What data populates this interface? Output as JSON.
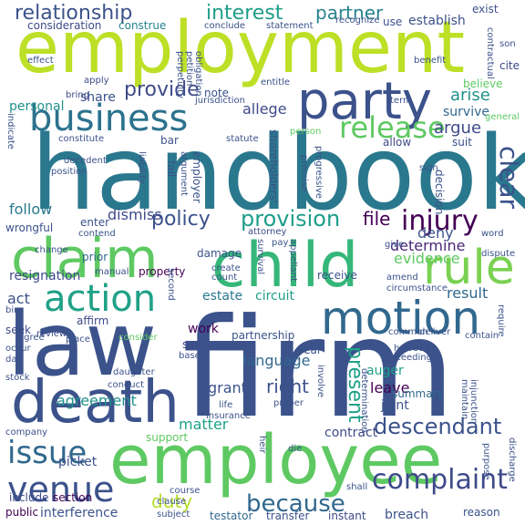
{
  "background": "#ffffff",
  "words": [
    {
      "id": "firm",
      "text": "firm",
      "color": "#3b528b"
    },
    {
      "id": "handbook",
      "text": "handbook",
      "color": "#2a788e"
    },
    {
      "id": "employment",
      "text": "employment",
      "color": "#bddf26"
    },
    {
      "id": "employee",
      "text": "employee",
      "color": "#5ec962"
    },
    {
      "id": "law",
      "text": "law",
      "color": "#3b528b"
    },
    {
      "id": "death",
      "text": "death",
      "color": "#3b528b"
    },
    {
      "id": "party",
      "text": "party",
      "color": "#3b528b"
    },
    {
      "id": "business",
      "text": "business",
      "color": "#2c728e"
    },
    {
      "id": "claim",
      "text": "claim",
      "color": "#5ec962"
    },
    {
      "id": "child",
      "text": "child",
      "color": "#35b779"
    },
    {
      "id": "motion",
      "text": "motion",
      "color": "#31688e"
    },
    {
      "id": "action",
      "text": "action",
      "color": "#1fa187"
    },
    {
      "id": "rule",
      "text": "rule",
      "color": "#7ad151"
    },
    {
      "id": "venue",
      "text": "venue",
      "color": "#3b528b"
    },
    {
      "id": "issue",
      "text": "issue",
      "color": "#31688e"
    },
    {
      "id": "release",
      "text": "release",
      "color": "#5ec962"
    },
    {
      "id": "complaint",
      "text": "complaint",
      "color": "#3e4a89"
    },
    {
      "id": "because",
      "text": "because",
      "color": "#31688e"
    },
    {
      "id": "descendant",
      "text": "descendant",
      "color": "#3b528b"
    },
    {
      "id": "injury",
      "text": "injury",
      "color": "#440154"
    },
    {
      "id": "provision",
      "text": "provision",
      "color": "#1f9e89"
    },
    {
      "id": "policy",
      "text": "policy",
      "color": "#3b528b"
    },
    {
      "id": "relationship",
      "text": "relationship",
      "color": "#3b528b"
    },
    {
      "id": "interest",
      "text": "interest",
      "color": "#1f9e89"
    },
    {
      "id": "partner",
      "text": "partner",
      "color": "#26828e"
    },
    {
      "id": "provide",
      "text": "provide",
      "color": "#3e4a89"
    },
    {
      "id": "present",
      "text": "present",
      "color": "#1fa187"
    },
    {
      "id": "agreement",
      "text": "agreement",
      "color": "#21918c"
    },
    {
      "id": "right",
      "text": "right",
      "color": "#3b528b"
    },
    {
      "id": "file",
      "text": "file",
      "color": "#440154"
    },
    {
      "id": "arise",
      "text": "arise",
      "color": "#21918c"
    },
    {
      "id": "argue",
      "text": "argue",
      "color": "#3e4a89"
    },
    {
      "id": "duty",
      "text": "duty",
      "color": "#b5de2b"
    },
    {
      "id": "resignation",
      "text": "resignation",
      "color": "#3e4a89"
    },
    {
      "id": "follow",
      "text": "follow",
      "color": "#2a788e"
    },
    {
      "id": "dismiss",
      "text": "dismiss",
      "color": "#3e4a89"
    },
    {
      "id": "deny",
      "text": "deny",
      "color": "#3b528b"
    },
    {
      "id": "determine",
      "text": "determine",
      "color": "#482878"
    },
    {
      "id": "evidence",
      "text": "evidence",
      "color": "#5ec962"
    },
    {
      "id": "allege",
      "text": "allege",
      "color": "#3e4a89"
    },
    {
      "id": "language",
      "text": "language",
      "color": "#31688e"
    },
    {
      "id": "leave",
      "text": "leave",
      "color": "#440154"
    },
    {
      "id": "contract",
      "text": "contract",
      "color": "#3e4a89"
    },
    {
      "id": "matter",
      "text": "matter",
      "color": "#1fa187"
    },
    {
      "id": "grant",
      "text": "grant",
      "color": "#3b528b"
    },
    {
      "id": "work",
      "text": "work",
      "color": "#440154"
    },
    {
      "id": "result",
      "text": "result",
      "color": "#31688e"
    },
    {
      "id": "circuit",
      "text": "circuit",
      "color": "#1f9e89"
    },
    {
      "id": "estate",
      "text": "estate",
      "color": "#2a788e"
    },
    {
      "id": "act",
      "text": "act",
      "color": "#3b528b"
    },
    {
      "id": "picket",
      "text": "picket",
      "color": "#3b528b"
    },
    {
      "id": "interference",
      "text": "interference",
      "color": "#3b528b"
    },
    {
      "id": "testator",
      "text": "testator",
      "color": "#31688e"
    },
    {
      "id": "transfer",
      "text": "transfer",
      "color": "#3b528b"
    },
    {
      "id": "instant",
      "text": "instant",
      "color": "#3e4a89"
    },
    {
      "id": "breach",
      "text": "breach",
      "color": "#3b528b"
    },
    {
      "id": "establish",
      "text": "establish",
      "color": "#3b528b"
    },
    {
      "id": "consideration",
      "text": "consideration",
      "color": "#3e4a89"
    },
    {
      "id": "construe",
      "text": "construe",
      "color": "#26828e"
    },
    {
      "id": "exist",
      "text": "exist",
      "color": "#3b528b"
    },
    {
      "id": "personal",
      "text": "personal",
      "color": "#21918c"
    },
    {
      "id": "share",
      "text": "share",
      "color": "#3b528b"
    },
    {
      "id": "survive",
      "text": "survive",
      "color": "#31688e"
    },
    {
      "id": "believe",
      "text": "believe",
      "color": "#5ec962"
    },
    {
      "id": "suit",
      "text": "suit",
      "color": "#3b528b"
    },
    {
      "id": "joint",
      "text": "joint",
      "color": "#3b528b"
    },
    {
      "id": "summary",
      "text": "summary",
      "color": "#31688e"
    },
    {
      "id": "auger",
      "text": "auger",
      "color": "#1f9e89"
    },
    {
      "id": "prior",
      "text": "prior",
      "color": "#31688e"
    },
    {
      "id": "property",
      "text": "property",
      "color": "#440154"
    },
    {
      "id": "partnership",
      "text": "partnership",
      "color": "#3b528b"
    },
    {
      "id": "include",
      "text": "include",
      "color": "#3e4a89"
    },
    {
      "id": "section",
      "text": "section",
      "color": "#440154"
    },
    {
      "id": "public",
      "text": "public",
      "color": "#440154"
    },
    {
      "id": "reason",
      "text": "reason",
      "color": "#3b528b"
    },
    {
      "id": "support",
      "text": "support",
      "color": "#5ec962"
    },
    {
      "id": "affirm",
      "text": "affirm",
      "color": "#3e4a89"
    },
    {
      "id": "say",
      "text": "say",
      "color": "#3e4a89"
    },
    {
      "id": "year",
      "text": "year",
      "color": "#3b528b"
    },
    {
      "id": "damage",
      "text": "damage",
      "color": "#3b528b"
    },
    {
      "id": "seek",
      "text": "seek",
      "color": "#3e4a89"
    },
    {
      "id": "review",
      "text": "review",
      "color": "#3e4a89"
    },
    {
      "id": "consider",
      "text": "consider",
      "color": "#5ec962"
    },
    {
      "id": "note",
      "text": "note",
      "color": "#3b528b"
    },
    {
      "id": "bar",
      "text": "bar",
      "color": "#3b528b"
    },
    {
      "id": "statute",
      "text": "statute",
      "color": "#3b528b"
    },
    {
      "id": "allow",
      "text": "allow",
      "color": "#3e4a89"
    },
    {
      "id": "constitute",
      "text": "constitute",
      "color": "#3b528b"
    },
    {
      "id": "decedent",
      "text": "decedent",
      "color": "#3b528b"
    },
    {
      "id": "position",
      "text": "position",
      "color": "#3b528b"
    },
    {
      "id": "apply",
      "text": "apply",
      "color": "#3e4a89"
    },
    {
      "id": "bring",
      "text": "bring",
      "color": "#3e4a89"
    },
    {
      "id": "effect",
      "text": "effect",
      "color": "#3b528b"
    },
    {
      "id": "conclude",
      "text": "conclude",
      "color": "#3b528b"
    },
    {
      "id": "statement",
      "text": "statement",
      "color": "#3b528b"
    },
    {
      "id": "benefit",
      "text": "benefit",
      "color": "#3b528b"
    },
    {
      "id": "term",
      "text": "term",
      "color": "#3b528b"
    },
    {
      "id": "person",
      "text": "person",
      "color": "#5ec962"
    },
    {
      "id": "cite",
      "text": "cite",
      "color": "#3e4a89"
    },
    {
      "id": "general",
      "text": "general",
      "color": "#5ec962"
    },
    {
      "id": "entitle",
      "text": "entitle",
      "color": "#3b528b"
    },
    {
      "id": "jurisdiction",
      "text": "jurisdiction",
      "color": "#3b528b"
    },
    {
      "id": "recognize",
      "text": "recognize",
      "color": "#3b528b"
    },
    {
      "id": "use",
      "text": "use",
      "color": "#3b528b"
    },
    {
      "id": "wrongful",
      "text": "wrongful",
      "color": "#3b528b"
    },
    {
      "id": "enter",
      "text": "enter",
      "color": "#3b528b"
    },
    {
      "id": "contend",
      "text": "contend",
      "color": "#3b528b"
    },
    {
      "id": "attorney",
      "text": "attorney",
      "color": "#3e4a89"
    },
    {
      "id": "pay",
      "text": "pay",
      "color": "#3b528b"
    },
    {
      "id": "word",
      "text": "word",
      "color": "#3b528b"
    },
    {
      "id": "give",
      "text": "give",
      "color": "#3b528b"
    },
    {
      "id": "dispute",
      "text": "dispute",
      "color": "#3b528b"
    },
    {
      "id": "change",
      "text": "change",
      "color": "#3b528b"
    },
    {
      "id": "manual",
      "text": "manual",
      "color": "#3b528b"
    },
    {
      "id": "create",
      "text": "create",
      "color": "#3b528b"
    },
    {
      "id": "count",
      "text": "count",
      "color": "#3b528b"
    },
    {
      "id": "receive",
      "text": "receive",
      "color": "#3b528b"
    },
    {
      "id": "amend",
      "text": "amend",
      "color": "#3b528b"
    },
    {
      "id": "circumstance",
      "text": "circumstance",
      "color": "#3b528b"
    },
    {
      "id": "require",
      "text": "require",
      "color": "#3b528b"
    },
    {
      "id": "common",
      "text": "common",
      "color": "#3b528b"
    },
    {
      "id": "deliver",
      "text": "deliver",
      "color": "#3b528b"
    },
    {
      "id": "contain",
      "text": "contain",
      "color": "#3b528b"
    },
    {
      "id": "however",
      "text": "however",
      "color": "#3b528b"
    },
    {
      "id": "proceeding",
      "text": "proceeding",
      "color": "#3b528b"
    },
    {
      "id": "occur",
      "text": "occur",
      "color": "#3b528b"
    },
    {
      "id": "day",
      "text": "day",
      "color": "#3b528b"
    },
    {
      "id": "agree",
      "text": "agree",
      "color": "#3b528b"
    },
    {
      "id": "place",
      "text": "place",
      "color": "#3b528b"
    },
    {
      "id": "base",
      "text": "base",
      "color": "#3b528b"
    },
    {
      "id": "stock",
      "text": "stock",
      "color": "#3b528b"
    },
    {
      "id": "daughter",
      "text": "daughter",
      "color": "#3b528b"
    },
    {
      "id": "conduct",
      "text": "conduct",
      "color": "#3b528b"
    },
    {
      "id": "life",
      "text": "life",
      "color": "#3b528b"
    },
    {
      "id": "insurance",
      "text": "insurance",
      "color": "#3b528b"
    },
    {
      "id": "proper",
      "text": "proper",
      "color": "#3b528b"
    },
    {
      "id": "maintain",
      "text": "maintain",
      "color": "#3b528b"
    },
    {
      "id": "injunction",
      "text": "injunction",
      "color": "#3b528b"
    },
    {
      "id": "company",
      "text": "company",
      "color": "#3b528b"
    },
    {
      "id": "die",
      "text": "die",
      "color": "#3b528b"
    },
    {
      "id": "course",
      "text": "course",
      "color": "#3b528b"
    },
    {
      "id": "clause",
      "text": "clause",
      "color": "#3b528b"
    },
    {
      "id": "subject",
      "text": "subject",
      "color": "#3b528b"
    },
    {
      "id": "shall",
      "text": "shall",
      "color": "#3b528b"
    },
    {
      "id": "purpose",
      "text": "purpose",
      "color": "#3b528b"
    },
    {
      "id": "discharge",
      "text": "discharge",
      "color": "#3b528b"
    },
    {
      "id": "clear",
      "text": "clear",
      "color": "#3b528b"
    },
    {
      "id": "son",
      "text": "son",
      "color": "#3b528b"
    },
    {
      "id": "indicate",
      "text": "indicate",
      "color": "#3b528b"
    },
    {
      "id": "perpetuity",
      "text": "perpetuity",
      "color": "#3b528b"
    },
    {
      "id": "petition",
      "text": "petition",
      "color": "#3b528b"
    },
    {
      "id": "obligation",
      "text": "obligation",
      "color": "#3b528b"
    },
    {
      "id": "contractual",
      "text": "contractual",
      "color": "#3b528b"
    },
    {
      "id": "liability",
      "text": "liability",
      "color": "#3b528b"
    },
    {
      "id": "fail",
      "text": "fail",
      "color": "#3b528b"
    },
    {
      "id": "argument",
      "text": "argument",
      "color": "#3b528b"
    },
    {
      "id": "employer",
      "text": "employer",
      "color": "#3b528b"
    },
    {
      "id": "shareholders",
      "text": "shareholders'",
      "color": "#3b528b"
    },
    {
      "id": "premise",
      "text": "premise",
      "color": "#3b528b"
    },
    {
      "id": "progressive",
      "text": "progressive",
      "color": "#3b528b"
    },
    {
      "id": "sign",
      "text": "sign",
      "color": "#3b528b"
    },
    {
      "id": "decision",
      "text": "decision",
      "color": "#3b528b"
    },
    {
      "id": "survival",
      "text": "survival",
      "color": "#3b528b"
    },
    {
      "id": "second",
      "text": "second",
      "color": "#3b528b"
    },
    {
      "id": "appellant",
      "text": "appellant",
      "color": "#3b528b"
    },
    {
      "id": "heir",
      "text": "heir",
      "color": "#3b528b"
    },
    {
      "id": "involve",
      "text": "involve",
      "color": "#3b528b"
    },
    {
      "id": "determination",
      "text": "determination",
      "color": "#3b528b"
    },
    {
      "id": "bin",
      "text": "bin",
      "color": "#3b528b"
    }
  ]
}
